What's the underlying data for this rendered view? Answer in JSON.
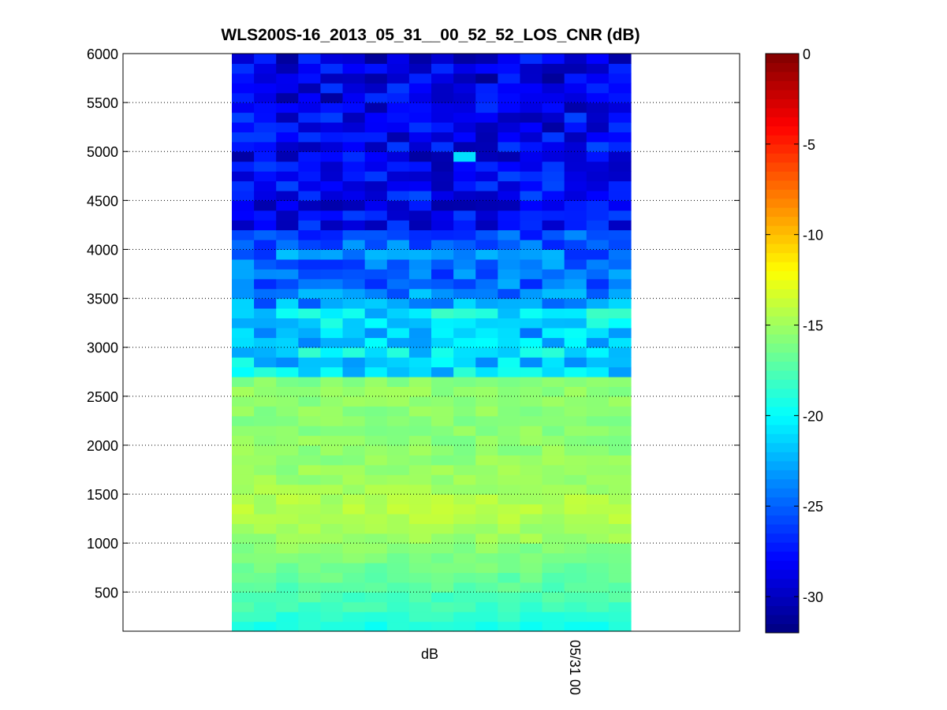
{
  "chart_data": {
    "type": "heatmap",
    "title": "WLS200S-16_2013_05_31__00_52_52_LOS_CNR (dB)",
    "xlabel": "dB",
    "x_tick_labels": [
      "05/31 00"
    ],
    "ylabel": "",
    "ylim": [
      100,
      6000
    ],
    "y_ticks": [
      500,
      1000,
      1500,
      2000,
      2500,
      3000,
      3500,
      4000,
      4500,
      5000,
      5500,
      6000
    ],
    "y_grid": "dotted",
    "colormap": "jet",
    "colorbar": {
      "clim": [
        -32,
        0
      ],
      "ticks": [
        0,
        -5,
        -10,
        -15,
        -20,
        -25,
        -30
      ],
      "position": "right"
    },
    "columns": 18,
    "rows": 59,
    "row_spacing": 100,
    "row_start": 100,
    "profile_db": {
      "altitude": [
        100,
        200,
        300,
        400,
        500,
        600,
        700,
        800,
        900,
        1000,
        1100,
        1200,
        1300,
        1400,
        1500,
        1600,
        1700,
        1800,
        1900,
        2000,
        2100,
        2200,
        2300,
        2400,
        2500,
        2600,
        2700,
        2800,
        2900,
        3000,
        3100,
        3200,
        3300,
        3400,
        3500,
        3600,
        3700,
        3800,
        3900,
        4000,
        4100,
        4200,
        4300,
        4400,
        4500,
        4600,
        4700,
        4800,
        4900,
        5000,
        5100,
        5200,
        5300,
        5400,
        5500,
        5600,
        5700,
        5800,
        5900
      ],
      "mean_cnr": [
        -19.3,
        -18.6,
        -18.0,
        -17.6,
        -17.2,
        -16.9,
        -16.5,
        -16.1,
        -15.7,
        -15.2,
        -14.8,
        -14.5,
        -14.4,
        -14.5,
        -14.8,
        -15.1,
        -15.3,
        -15.4,
        -15.5,
        -15.6,
        -15.6,
        -15.6,
        -15.6,
        -15.5,
        -15.5,
        -15.8,
        -20.9,
        -21.3,
        -20.7,
        -21.6,
        -22.2,
        -21.0,
        -20.5,
        -23.4,
        -24.0,
        -24.6,
        -24.9,
        -24.6,
        -24.2,
        -24.6,
        -25.8,
        -28.0,
        -27.8,
        -28.3,
        -27.6,
        -28.1,
        -28.0,
        -28.3,
        -28.6,
        -28.1,
        -28.4,
        -28.7,
        -28.2,
        -28.5,
        -28.6,
        -28.4,
        -28.9,
        -28.5,
        -28.8
      ]
    },
    "notable_cells": [
      {
        "column": 10,
        "altitude": 4900,
        "value": -21
      }
    ]
  }
}
